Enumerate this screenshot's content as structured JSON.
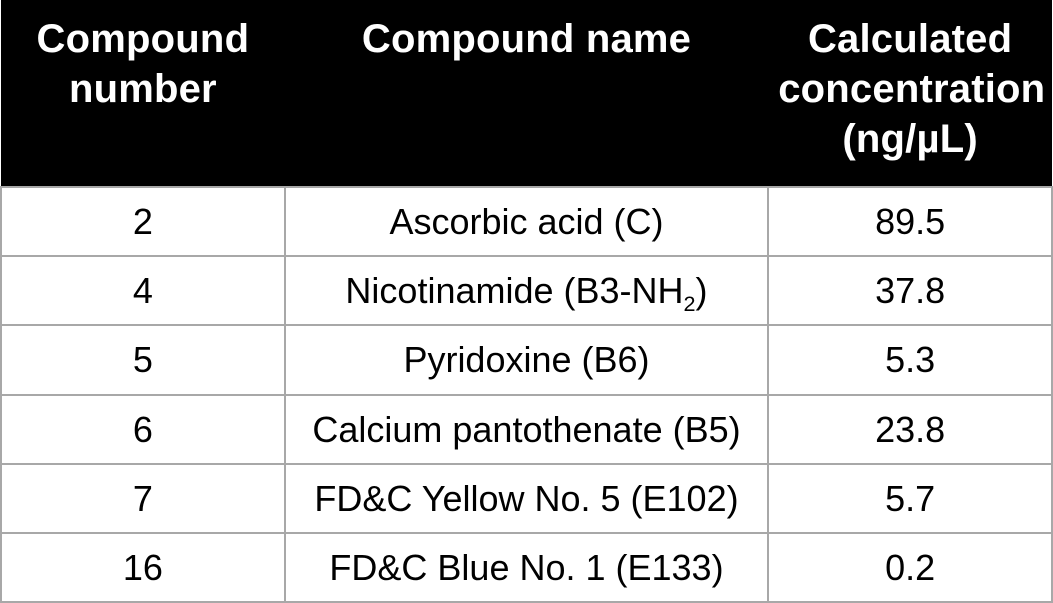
{
  "table": {
    "type": "table",
    "background_color": "#ffffff",
    "header_bg": "#000000",
    "header_fg": "#ffffff",
    "cell_border_color": "#a8a8a8",
    "header_fontsize_pt": 30,
    "cell_fontsize_pt": 27,
    "header_font_weight": 700,
    "cell_font_weight": 400,
    "columns": [
      {
        "key": "num",
        "label": "Compound number",
        "width_pct": 27,
        "align": "center"
      },
      {
        "key": "name",
        "label": "Compound name",
        "width_pct": 46,
        "align": "center"
      },
      {
        "key": "conc",
        "label": "Calculated concentration (ng/µL)",
        "width_pct": 27,
        "align": "center"
      }
    ],
    "rows": [
      {
        "num": "2",
        "name": "Ascorbic acid (C)",
        "sub": "",
        "conc": "89.5"
      },
      {
        "num": "4",
        "name": "Nicotinamide (B3-NH",
        "sub": "2",
        "name_tail": ")",
        "conc": "37.8"
      },
      {
        "num": "5",
        "name": "Pyridoxine (B6)",
        "sub": "",
        "conc": "5.3"
      },
      {
        "num": "6",
        "name": "Calcium pantothenate (B5)",
        "sub": "",
        "conc": "23.8"
      },
      {
        "num": "7",
        "name": "FD&C Yellow No. 5 (E102)",
        "sub": "",
        "conc": "5.7"
      },
      {
        "num": "16",
        "name": "FD&C Blue No. 1 (E133)",
        "sub": "",
        "conc": "0.2"
      }
    ]
  }
}
